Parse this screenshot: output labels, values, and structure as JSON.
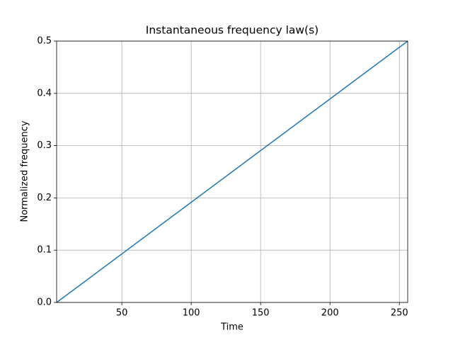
{
  "chart_data": {
    "type": "line",
    "title": "Instantaneous frequency law(s)",
    "x_label": "Time",
    "y_label": "Normalized frequency",
    "x": [
      3,
      256
    ],
    "series": [
      {
        "name": "Instantaneous frequency",
        "color": "#1f77b4",
        "values": [
          0,
          0.5
        ]
      }
    ],
    "xlim": [
      3,
      256
    ],
    "xticks": [
      50,
      100,
      150,
      200,
      250
    ],
    "ylim": [
      0,
      0.5
    ],
    "yticks": [
      {
        "value": 0,
        "label": "0.0"
      },
      0.1,
      0.2,
      0.3,
      0.4,
      0.5
    ],
    "grid": true
  }
}
